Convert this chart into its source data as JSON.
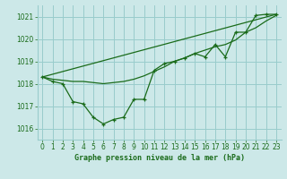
{
  "title": "Graphe pression niveau de la mer (hPa)",
  "background_color": "#cce8e8",
  "grid_color": "#99cccc",
  "line_color": "#1a6b1a",
  "xlim": [
    -0.5,
    23.5
  ],
  "ylim": [
    1015.5,
    1021.5
  ],
  "xticks": [
    0,
    1,
    2,
    3,
    4,
    5,
    6,
    7,
    8,
    9,
    10,
    11,
    12,
    13,
    14,
    15,
    16,
    17,
    18,
    19,
    20,
    21,
    22,
    23
  ],
  "yticks": [
    1016,
    1017,
    1018,
    1019,
    1020,
    1021
  ],
  "line_jagged": {
    "x": [
      0,
      1,
      2,
      3,
      4,
      5,
      6,
      7,
      8,
      9,
      10,
      11,
      12,
      13,
      14,
      15,
      16,
      17,
      18,
      19,
      20,
      21,
      22,
      23
    ],
    "y": [
      1018.3,
      1018.1,
      1018.0,
      1017.2,
      1017.1,
      1016.5,
      1016.2,
      1016.4,
      1016.5,
      1017.3,
      1017.3,
      1018.6,
      1018.9,
      1019.0,
      1019.15,
      1019.35,
      1019.2,
      1019.75,
      1019.2,
      1020.3,
      1020.3,
      1021.05,
      1021.1,
      1021.1
    ]
  },
  "line_straight": {
    "x": [
      0,
      23
    ],
    "y": [
      1018.3,
      1021.1
    ]
  },
  "line_mid": {
    "x": [
      0,
      1,
      2,
      3,
      4,
      5,
      6,
      7,
      8,
      9,
      10,
      11,
      12,
      13,
      14,
      15,
      16,
      17,
      18,
      19,
      20,
      21,
      22,
      23
    ],
    "y": [
      1018.3,
      1018.2,
      1018.15,
      1018.1,
      1018.1,
      1018.05,
      1018.0,
      1018.05,
      1018.1,
      1018.2,
      1018.35,
      1018.55,
      1018.75,
      1019.0,
      1019.15,
      1019.35,
      1019.5,
      1019.65,
      1019.75,
      1019.95,
      1020.3,
      1020.5,
      1020.8,
      1021.05
    ]
  },
  "xlabel_fontsize": 6,
  "tick_fontsize": 5.5
}
